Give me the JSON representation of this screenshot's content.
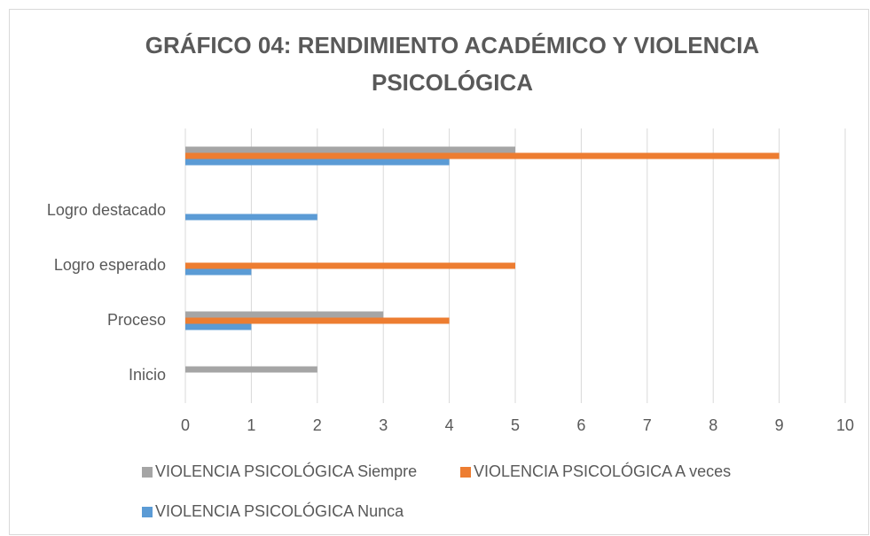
{
  "chart_data": {
    "type": "bar",
    "orientation": "horizontal",
    "title": "GRÁFICO 04: RENDIMIENTO ACADÉMICO Y VIOLENCIA PSICOLÓGICA",
    "categories": [
      "Inicio",
      "Proceso",
      "Logro esperado",
      "Logro destacado",
      null
    ],
    "series": [
      {
        "name": "VIOLENCIA PSICOLÓGICA Siempre",
        "color": "#a5a5a5",
        "values": [
          2,
          3,
          0,
          0,
          5
        ]
      },
      {
        "name": "VIOLENCIA PSICOLÓGICA A veces",
        "color": "#ed7d31",
        "values": [
          0,
          4,
          5,
          0,
          9
        ]
      },
      {
        "name": "VIOLENCIA PSICOLÓGICA Nunca",
        "color": "#5b9bd5",
        "values": [
          0,
          1,
          1,
          2,
          4
        ]
      }
    ],
    "xlim": [
      0,
      10
    ],
    "xticks": [
      0,
      1,
      2,
      3,
      4,
      5,
      6,
      7,
      8,
      9,
      10
    ],
    "grid": true,
    "legend": "bottom"
  }
}
